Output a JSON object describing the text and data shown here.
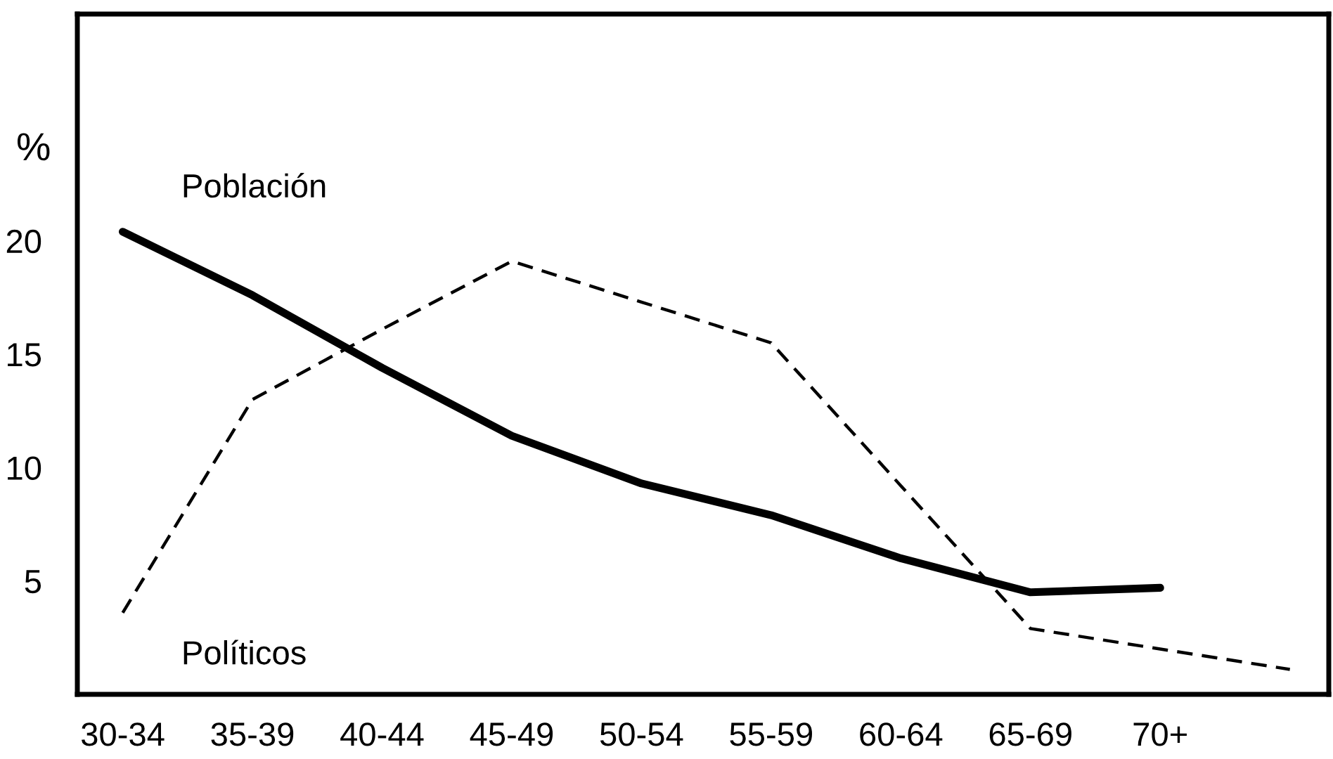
{
  "chart_data": {
    "type": "line",
    "ylabel": "%",
    "categories": [
      "30-34",
      "35-39",
      "40-44",
      "45-49",
      "50-54",
      "55-59",
      "60-64",
      "65-69",
      "70+",
      null
    ],
    "ylim": [
      0,
      30
    ],
    "yticks": [
      5,
      10,
      15,
      20
    ],
    "grid": false,
    "legend": false,
    "series": [
      {
        "name": "Población",
        "color": "#000000",
        "line_style": "solid",
        "values": [
          20.4,
          17.6,
          14.4,
          11.4,
          9.3,
          7.9,
          6.0,
          4.5,
          4.7,
          null
        ]
      },
      {
        "name": "Políticos",
        "color": "#000000",
        "line_style": "dashed",
        "values": [
          3.6,
          13,
          16.1,
          19.1,
          17.3,
          15.5,
          9.2,
          2.9,
          2.0,
          1.1
        ]
      }
    ]
  }
}
